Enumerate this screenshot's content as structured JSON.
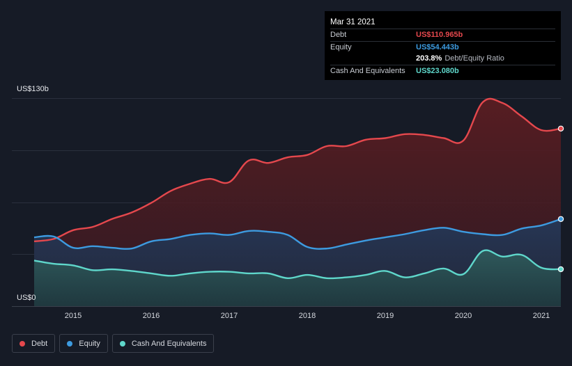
{
  "tooltip": {
    "date": "Mar 31 2021",
    "rows": [
      {
        "label": "Debt",
        "value": "US$110.965b",
        "color": "#e5484d"
      },
      {
        "label": "Equity",
        "value": "US$54.443b",
        "color": "#3d9be0"
      },
      {
        "ratio_value": "203.8%",
        "ratio_label": "Debt/Equity Ratio"
      },
      {
        "label": "Cash And Equivalents",
        "value": "US$23.080b",
        "color": "#5fd7cb"
      }
    ]
  },
  "y_axis": {
    "top_label": "US$130b",
    "bottom_label": "US$0"
  },
  "legend": [
    {
      "label": "Debt",
      "color": "#e5484d"
    },
    {
      "label": "Equity",
      "color": "#3d9be0"
    },
    {
      "label": "Cash And Equivalents",
      "color": "#5fd7cb"
    }
  ],
  "chart_data": {
    "type": "area",
    "x_ticks": [
      "2015",
      "2016",
      "2017",
      "2018",
      "2019",
      "2020",
      "2021"
    ],
    "ylim": [
      0,
      130
    ],
    "yunit": "US$b",
    "grid": true,
    "series": [
      {
        "name": "Debt",
        "color": "#e5484d",
        "points": [
          [
            "2014-07",
            40.5
          ],
          [
            "2014-10",
            42
          ],
          [
            "2015-01",
            47.5
          ],
          [
            "2015-04",
            49.5
          ],
          [
            "2015-07",
            54.5
          ],
          [
            "2015-10",
            58.5
          ],
          [
            "2016-01",
            64.5
          ],
          [
            "2016-04",
            72
          ],
          [
            "2016-07",
            76.5
          ],
          [
            "2016-10",
            79.5
          ],
          [
            "2017-01",
            77.5
          ],
          [
            "2017-04",
            91
          ],
          [
            "2017-07",
            89.5
          ],
          [
            "2017-10",
            93
          ],
          [
            "2018-01",
            94.5
          ],
          [
            "2018-04",
            100
          ],
          [
            "2018-07",
            100
          ],
          [
            "2018-10",
            104
          ],
          [
            "2019-01",
            105
          ],
          [
            "2019-04",
            107.5
          ],
          [
            "2019-07",
            107
          ],
          [
            "2019-10",
            105
          ],
          [
            "2020-01",
            103.5
          ],
          [
            "2020-04",
            127.5
          ],
          [
            "2020-07",
            127
          ],
          [
            "2020-10",
            118.5
          ],
          [
            "2021-01",
            110
          ],
          [
            "2021-04",
            110.965
          ]
        ]
      },
      {
        "name": "Equity",
        "color": "#3d9be0",
        "points": [
          [
            "2014-07",
            43
          ],
          [
            "2014-10",
            43.5
          ],
          [
            "2015-01",
            36.5
          ],
          [
            "2015-04",
            37.5
          ],
          [
            "2015-07",
            36.5
          ],
          [
            "2015-10",
            36
          ],
          [
            "2016-01",
            40.5
          ],
          [
            "2016-04",
            42
          ],
          [
            "2016-07",
            44.5
          ],
          [
            "2016-10",
            45.5
          ],
          [
            "2017-01",
            44.5
          ],
          [
            "2017-04",
            47
          ],
          [
            "2017-07",
            46.5
          ],
          [
            "2017-10",
            44.5
          ],
          [
            "2018-01",
            37
          ],
          [
            "2018-04",
            36
          ],
          [
            "2018-07",
            38.5
          ],
          [
            "2018-10",
            41
          ],
          [
            "2019-01",
            43
          ],
          [
            "2019-04",
            45
          ],
          [
            "2019-07",
            47.5
          ],
          [
            "2019-10",
            49
          ],
          [
            "2020-01",
            46.5
          ],
          [
            "2020-04",
            45
          ],
          [
            "2020-07",
            44.5
          ],
          [
            "2020-10",
            48.5
          ],
          [
            "2021-01",
            50.5
          ],
          [
            "2021-04",
            54.443
          ]
        ]
      },
      {
        "name": "Cash And Equivalents",
        "color": "#5fd7cb",
        "points": [
          [
            "2014-07",
            28.5
          ],
          [
            "2014-10",
            26.5
          ],
          [
            "2015-01",
            25.5
          ],
          [
            "2015-04",
            22.5
          ],
          [
            "2015-07",
            23
          ],
          [
            "2015-10",
            22
          ],
          [
            "2016-01",
            20.5
          ],
          [
            "2016-04",
            19
          ],
          [
            "2016-07",
            20.5
          ],
          [
            "2016-10",
            21.5
          ],
          [
            "2017-01",
            21.5
          ],
          [
            "2017-04",
            20.5
          ],
          [
            "2017-07",
            20.5
          ],
          [
            "2017-10",
            17.5
          ],
          [
            "2018-01",
            19.5
          ],
          [
            "2018-04",
            17.5
          ],
          [
            "2018-07",
            18
          ],
          [
            "2018-10",
            19.5
          ],
          [
            "2019-01",
            22
          ],
          [
            "2019-04",
            18
          ],
          [
            "2019-07",
            20.5
          ],
          [
            "2019-10",
            23.5
          ],
          [
            "2020-01",
            20
          ],
          [
            "2020-04",
            34.5
          ],
          [
            "2020-07",
            31
          ],
          [
            "2020-10",
            32
          ],
          [
            "2021-01",
            24
          ],
          [
            "2021-04",
            23.08
          ]
        ]
      }
    ]
  }
}
